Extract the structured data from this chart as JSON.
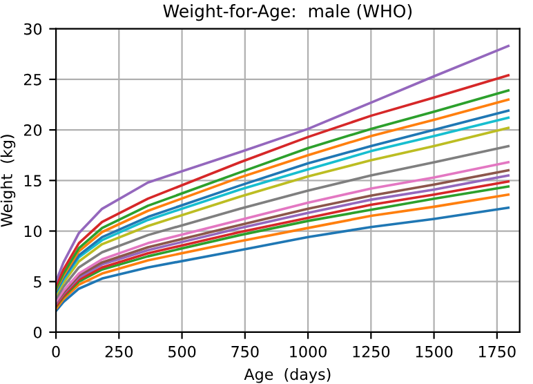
{
  "chart_data": {
    "type": "line",
    "title": "Weight-for-Age:  male (WHO)",
    "xlabel": "Age  (days)",
    "ylabel": "Weight  (kg)",
    "x": [
      0,
      30,
      91,
      183,
      365,
      730,
      1000,
      1250,
      1500,
      1795
    ],
    "series": [
      {
        "color": "#1f77b4",
        "values": [
          2.1,
          3.0,
          4.3,
          5.3,
          6.4,
          8.1,
          9.4,
          10.4,
          11.2,
          12.3
        ]
      },
      {
        "color": "#ff7f0e",
        "values": [
          2.3,
          3.3,
          4.7,
          5.8,
          7.1,
          9.0,
          10.3,
          11.5,
          12.4,
          13.6
        ]
      },
      {
        "color": "#2ca02c",
        "values": [
          2.5,
          3.5,
          5.0,
          6.2,
          7.5,
          9.6,
          11.0,
          12.1,
          13.2,
          14.4
        ]
      },
      {
        "color": "#d62728",
        "values": [
          2.6,
          3.6,
          5.2,
          6.4,
          7.8,
          9.9,
          11.3,
          12.6,
          13.6,
          14.9
        ]
      },
      {
        "color": "#9467bd",
        "values": [
          2.8,
          3.8,
          5.4,
          6.7,
          8.1,
          10.3,
          11.8,
          13.1,
          14.1,
          15.5
        ]
      },
      {
        "color": "#8c564b",
        "values": [
          2.9,
          3.9,
          5.6,
          6.9,
          8.4,
          10.6,
          12.2,
          13.5,
          14.6,
          16.0
        ]
      },
      {
        "color": "#e377c2",
        "values": [
          3.0,
          4.1,
          5.8,
          7.2,
          8.8,
          11.1,
          12.8,
          14.2,
          15.3,
          16.8
        ]
      },
      {
        "color": "#7f7f7f",
        "values": [
          3.3,
          4.5,
          6.4,
          7.9,
          9.6,
          12.2,
          14.0,
          15.5,
          16.8,
          18.4
        ]
      },
      {
        "color": "#bcbd22",
        "values": [
          3.7,
          4.9,
          7.0,
          8.7,
          10.5,
          13.4,
          15.4,
          17.0,
          18.4,
          20.2
        ]
      },
      {
        "color": "#17becf",
        "values": [
          3.9,
          5.2,
          7.4,
          9.1,
          11.1,
          14.1,
          16.1,
          17.9,
          19.4,
          21.2
        ]
      },
      {
        "color": "#1f77b4",
        "values": [
          4.0,
          5.4,
          7.6,
          9.4,
          11.4,
          14.5,
          16.7,
          18.4,
          20.0,
          21.9
        ]
      },
      {
        "color": "#ff7f0e",
        "values": [
          4.2,
          5.6,
          8.0,
          9.9,
          12.0,
          15.3,
          17.5,
          19.4,
          21.0,
          23.0
        ]
      },
      {
        "color": "#2ca02c",
        "values": [
          4.3,
          5.8,
          8.3,
          10.3,
          12.5,
          15.8,
          18.2,
          20.1,
          21.8,
          23.9
        ]
      },
      {
        "color": "#d62728",
        "values": [
          4.6,
          6.2,
          8.8,
          10.9,
          13.2,
          16.8,
          19.3,
          21.4,
          23.2,
          25.4
        ]
      },
      {
        "color": "#9467bd",
        "values": [
          5.0,
          6.9,
          9.8,
          12.2,
          14.8,
          17.8,
          20.1,
          22.7,
          25.3,
          28.3
        ]
      }
    ],
    "xlim": [
      0,
      1840
    ],
    "xticks": [
      0,
      250,
      500,
      750,
      1000,
      1250,
      1500,
      1750
    ],
    "ylim": [
      0,
      30
    ],
    "yticks": [
      0,
      5,
      10,
      15,
      20,
      25,
      30
    ],
    "grid": true
  }
}
